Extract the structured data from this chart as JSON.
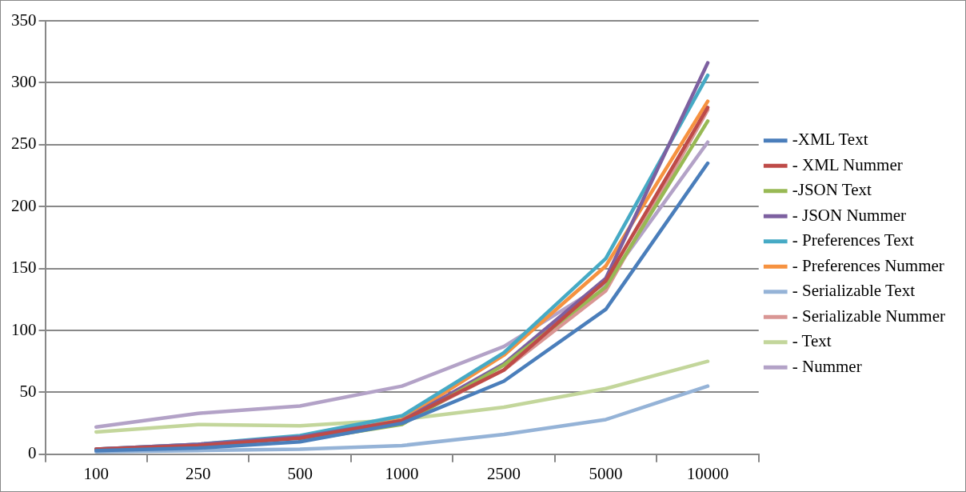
{
  "chart_data": {
    "type": "line",
    "categories": [
      "100",
      "250",
      "500",
      "1000",
      "2500",
      "5000",
      "10000"
    ],
    "ylim": [
      0,
      350
    ],
    "yticks": [
      0,
      50,
      100,
      150,
      200,
      250,
      300,
      350
    ],
    "grid": "y",
    "legend": "right",
    "marker": "none",
    "line_style": "solid",
    "series": [
      {
        "name": "-XML Text",
        "color": "#4a7ebb",
        "values": [
          3,
          5,
          10,
          25,
          59,
          117,
          235
        ]
      },
      {
        "name": "- XML Nummer",
        "color": "#be4b48",
        "values": [
          4,
          7,
          13,
          27,
          68,
          140,
          280
        ]
      },
      {
        "name": "-JSON Text",
        "color": "#98b954",
        "values": [
          null,
          null,
          11,
          24,
          72,
          135,
          269
        ]
      },
      {
        "name": "- JSON Nummer",
        "color": "#7d60a0",
        "values": [
          4,
          8,
          14,
          27,
          73,
          142,
          316
        ]
      },
      {
        "name": "- Preferences Text",
        "color": "#46aac5",
        "values": [
          4,
          8,
          15,
          31,
          82,
          158,
          306
        ]
      },
      {
        "name": "- Preferences Nummer",
        "color": "#f69240",
        "values": [
          null,
          null,
          13,
          28,
          80,
          152,
          285
        ]
      },
      {
        "name": "- Serializable Text",
        "color": "#95b3d7",
        "values": [
          2,
          3,
          4,
          7,
          16,
          28,
          55
        ]
      },
      {
        "name": "- Serializable Nummer",
        "color": "#d99694",
        "values": [
          4,
          8,
          14,
          26,
          68,
          132,
          278
        ]
      },
      {
        "name": "- Text",
        "color": "#c3d69b",
        "values": [
          18,
          24,
          23,
          28,
          38,
          53,
          75
        ]
      },
      {
        "name": "- Nummer",
        "color": "#b3a2c7",
        "values": [
          22,
          33,
          39,
          55,
          87,
          138,
          252
        ]
      }
    ]
  }
}
